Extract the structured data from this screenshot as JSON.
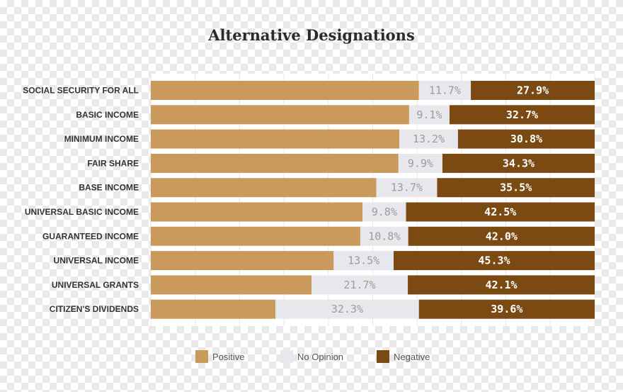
{
  "chart_data": {
    "type": "bar",
    "orientation": "horizontal",
    "stacked": true,
    "normalized_percent": true,
    "title": "Alternative Designations",
    "xlabel": "",
    "ylabel": "",
    "xlim": [
      0,
      100
    ],
    "categories": [
      "SOCIAL SECURITY FOR ALL",
      "BASIC INCOME",
      "MINIMUM INCOME",
      "FAIR SHARE",
      "BASE INCOME",
      "UNIVERSAL BASIC INCOME",
      "GUARANTEED INCOME",
      "UNIVERSAL INCOME",
      "UNIVERSAL GRANTS",
      "CITIZEN'S DIVIDENDS"
    ],
    "series": [
      {
        "name": "Positive",
        "color": "#c99a5b",
        "values": [
          60.4,
          58.2,
          56.0,
          55.8,
          50.8,
          47.7,
          47.2,
          41.2,
          36.2,
          28.1
        ],
        "labels": [
          "",
          "",
          "",
          "",
          "",
          "",
          "",
          "",
          "",
          ""
        ]
      },
      {
        "name": "No Opinion",
        "color": "#e8e8ec",
        "values": [
          11.7,
          9.1,
          13.2,
          9.9,
          13.7,
          9.8,
          10.8,
          13.5,
          21.7,
          32.3
        ],
        "labels": [
          "11.7%",
          "9.1%",
          "13.2%",
          "9.9%",
          "13.7%",
          "9.8%",
          "10.8%",
          "13.5%",
          "21.7%",
          "32.3%"
        ]
      },
      {
        "name": "Negative",
        "color": "#7a4a12",
        "values": [
          27.9,
          32.7,
          30.8,
          34.3,
          35.5,
          42.5,
          42.0,
          45.3,
          42.1,
          39.6
        ],
        "labels": [
          "27.9%",
          "32.7%",
          "30.8%",
          "34.3%",
          "35.5%",
          "42.5%",
          "42.0%",
          "45.3%",
          "42.1%",
          "39.6%"
        ]
      }
    ],
    "legend": {
      "position": "bottom",
      "entries": [
        "Positive",
        "No Opinion",
        "Negative"
      ]
    },
    "grid": true
  }
}
